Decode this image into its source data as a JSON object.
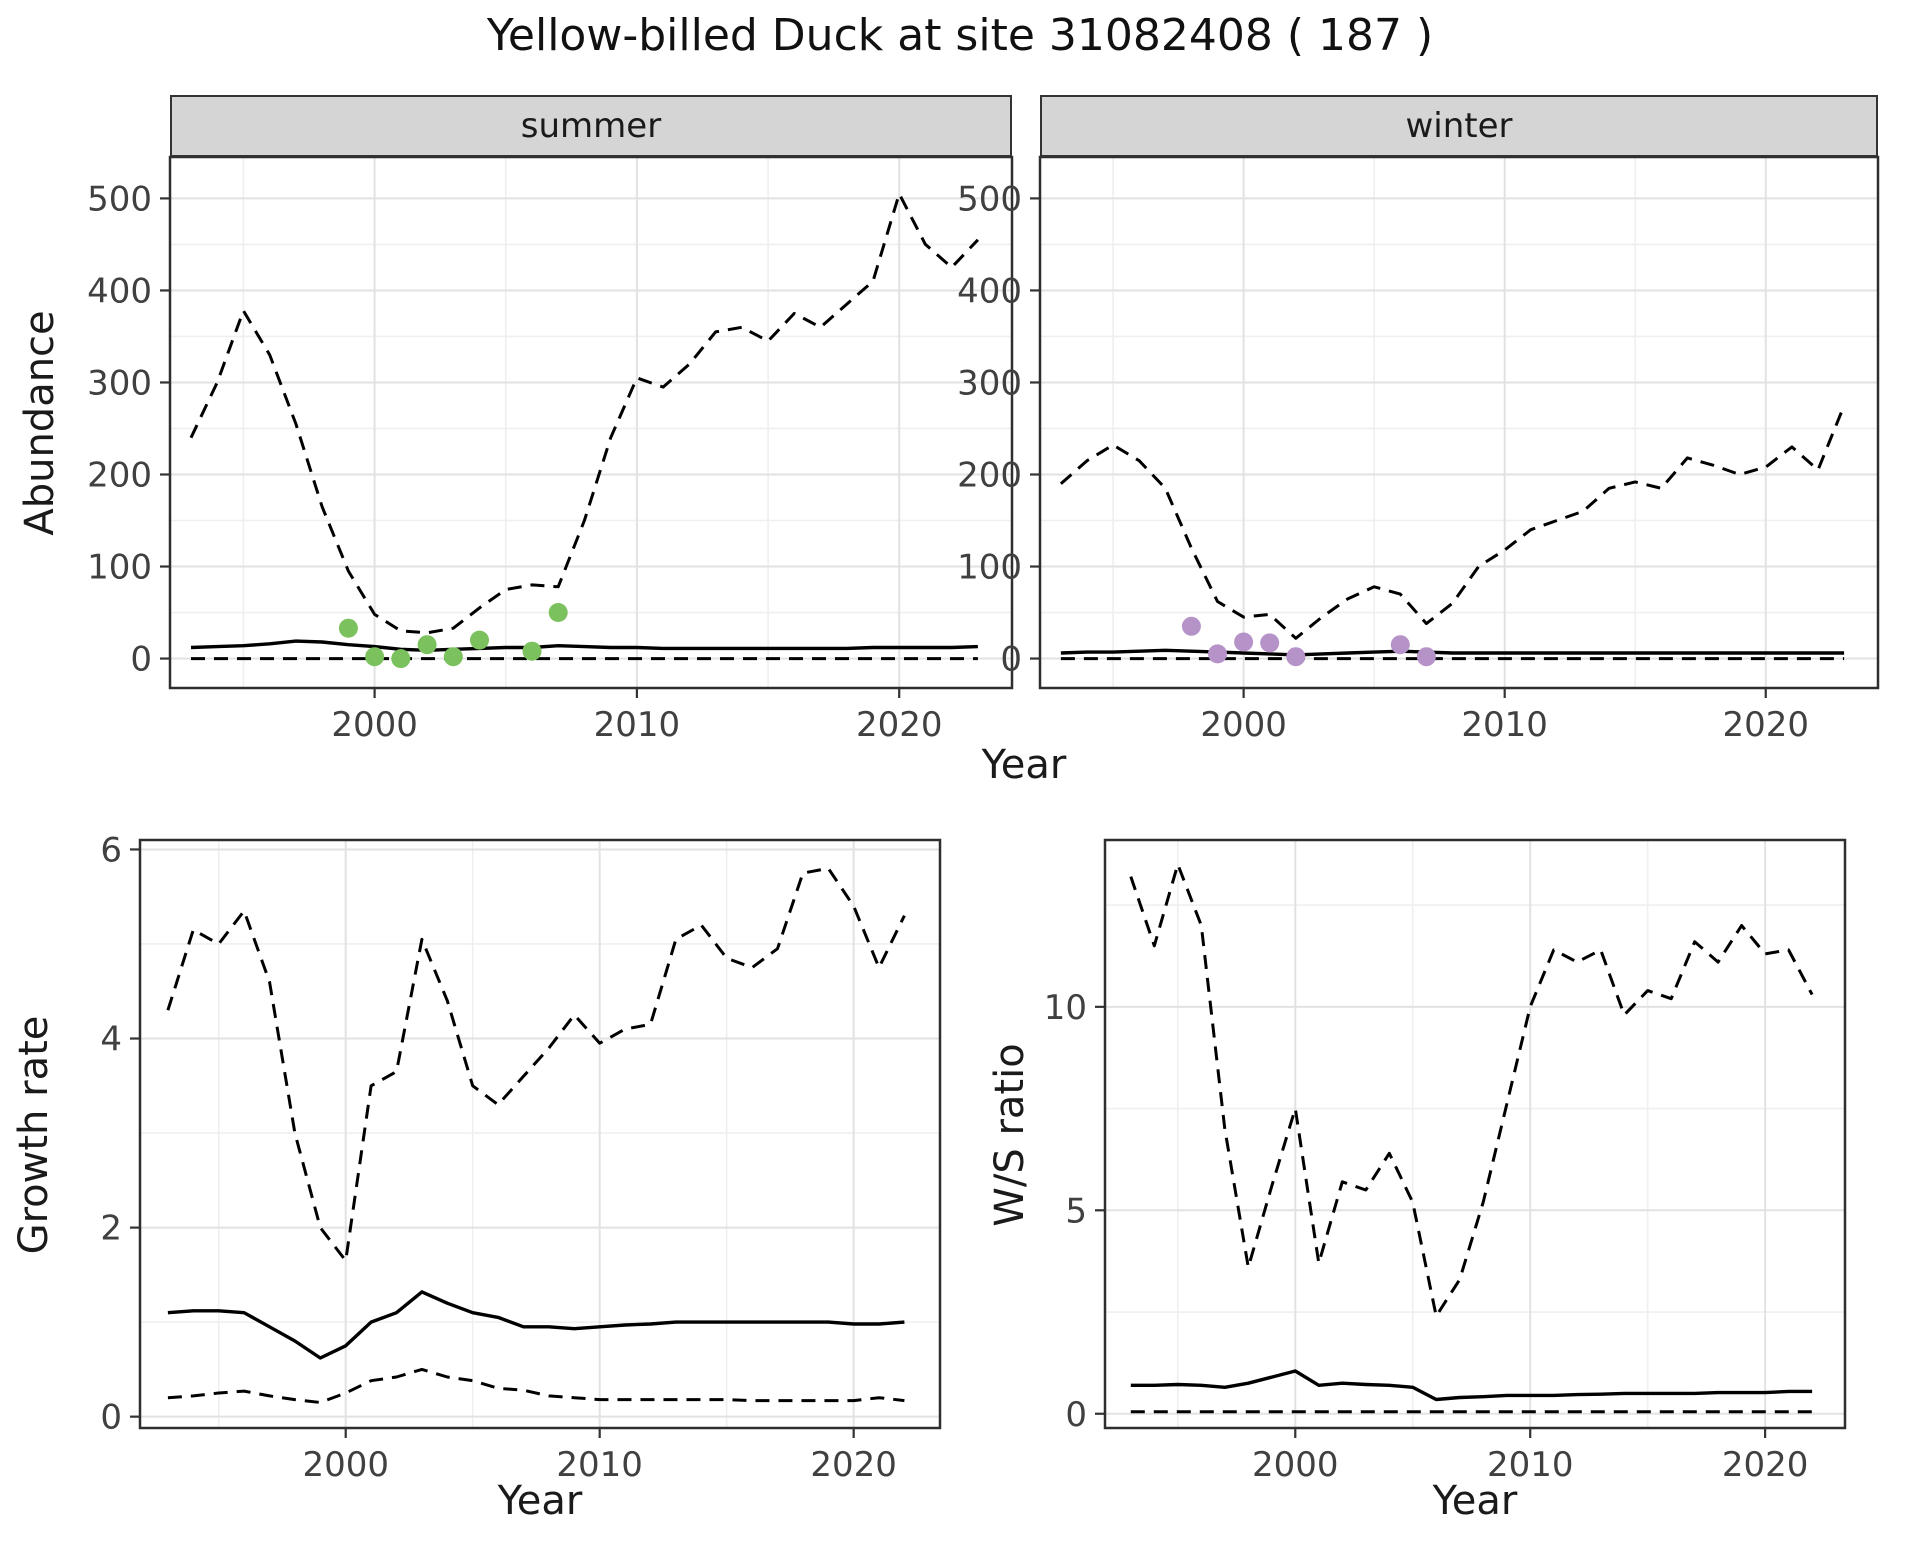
{
  "figure": {
    "title": "Yellow-billed Duck at site 31082408 ( 187 )",
    "colors": {
      "line": "#000000",
      "summer_points": "#7bc25e",
      "winter_points": "#b593c8",
      "strip_bg": "#d5d5d5",
      "grid_major": "#e2e2e2",
      "grid_minor": "#efefef",
      "panel_border": "#2e2e2e",
      "tick": "#333333",
      "tick_label": "#404040"
    }
  },
  "chart_data": [
    {
      "id": "abundance-summer",
      "type": "line",
      "facet_label": "summer",
      "xlabel": "Year",
      "ylabel": "Abundance",
      "xlim": [
        1992.2,
        2024.3
      ],
      "ylim": [
        -32,
        545
      ],
      "xticks": [
        2000,
        2010,
        2020
      ],
      "yticks": [
        0,
        100,
        200,
        300,
        400,
        500
      ],
      "x_minor": [
        1995,
        2005,
        2015
      ],
      "y_minor": [
        50,
        150,
        250,
        350,
        450
      ],
      "x": [
        1993,
        1994,
        1995,
        1996,
        1997,
        1998,
        1999,
        2000,
        2001,
        2002,
        2003,
        2004,
        2005,
        2006,
        2007,
        2008,
        2009,
        2010,
        2011,
        2012,
        2013,
        2014,
        2015,
        2016,
        2017,
        2018,
        2019,
        2020,
        2021,
        2022,
        2023
      ],
      "series": [
        {
          "name": "upper_ci",
          "style": "dashed",
          "values": [
            240,
            300,
            378,
            330,
            255,
            165,
            95,
            48,
            30,
            28,
            33,
            55,
            75,
            80,
            78,
            150,
            240,
            305,
            295,
            320,
            355,
            360,
            345,
            375,
            360,
            385,
            410,
            505,
            450,
            425,
            455
          ]
        },
        {
          "name": "median",
          "style": "solid",
          "values": [
            12,
            13,
            14,
            16,
            19,
            18,
            15,
            13,
            10,
            9,
            10,
            11,
            12,
            12,
            14,
            13,
            12,
            12,
            11,
            11,
            11,
            11,
            11,
            11,
            11,
            11,
            12,
            12,
            12,
            12,
            13
          ]
        },
        {
          "name": "lower_ci",
          "style": "dashed",
          "values": [
            0,
            0,
            0,
            0,
            0,
            0,
            0,
            0,
            0,
            0,
            0,
            0,
            0,
            0,
            0,
            0,
            0,
            0,
            0,
            0,
            0,
            0,
            0,
            0,
            0,
            0,
            0,
            0,
            0,
            0,
            0
          ]
        }
      ],
      "points": {
        "name": "observed-counts-summer",
        "color": "#7bc25e",
        "x": [
          1999,
          2000,
          2001,
          2002,
          2003,
          2004,
          2006,
          2007
        ],
        "y": [
          33,
          2,
          0,
          15,
          2,
          20,
          8,
          50
        ]
      }
    },
    {
      "id": "abundance-winter",
      "type": "line",
      "facet_label": "winter",
      "xlabel": "Year",
      "ylabel": "Abundance",
      "xlim": [
        1992.2,
        2024.3
      ],
      "ylim": [
        -32,
        545
      ],
      "xticks": [
        2000,
        2010,
        2020
      ],
      "yticks": [
        0,
        100,
        200,
        300,
        400,
        500
      ],
      "x_minor": [
        1995,
        2005,
        2015
      ],
      "y_minor": [
        50,
        150,
        250,
        350,
        450
      ],
      "x": [
        1993,
        1994,
        1995,
        1996,
        1997,
        1998,
        1999,
        2000,
        2001,
        2002,
        2003,
        2004,
        2005,
        2006,
        2007,
        2008,
        2009,
        2010,
        2011,
        2012,
        2013,
        2014,
        2015,
        2016,
        2017,
        2018,
        2019,
        2020,
        2021,
        2022,
        2023
      ],
      "series": [
        {
          "name": "upper_ci",
          "style": "dashed",
          "values": [
            190,
            215,
            232,
            215,
            185,
            120,
            62,
            45,
            48,
            22,
            45,
            65,
            78,
            70,
            38,
            60,
            100,
            118,
            140,
            150,
            160,
            185,
            192,
            185,
            218,
            210,
            200,
            208,
            230,
            205,
            275
          ]
        },
        {
          "name": "median",
          "style": "solid",
          "values": [
            6,
            7,
            7,
            8,
            9,
            8,
            7,
            6,
            5,
            4,
            5,
            6,
            7,
            8,
            7,
            6,
            6,
            6,
            6,
            6,
            6,
            6,
            6,
            6,
            6,
            6,
            6,
            6,
            6,
            6,
            6
          ]
        },
        {
          "name": "lower_ci",
          "style": "dashed",
          "values": [
            0,
            0,
            0,
            0,
            0,
            0,
            0,
            0,
            0,
            0,
            0,
            0,
            0,
            0,
            0,
            0,
            0,
            0,
            0,
            0,
            0,
            0,
            0,
            0,
            0,
            0,
            0,
            0,
            0,
            0,
            0
          ]
        }
      ],
      "points": {
        "name": "observed-counts-winter",
        "color": "#b593c8",
        "x": [
          1998,
          1999,
          2000,
          2001,
          2002,
          2006,
          2007
        ],
        "y": [
          35,
          5,
          18,
          17,
          2,
          15,
          2
        ]
      }
    },
    {
      "id": "growth-rate",
      "type": "line",
      "facet_label": "",
      "xlabel": "Year",
      "ylabel": "Growth rate",
      "xlim": [
        1991.9,
        2023.4
      ],
      "ylim": [
        -0.12,
        6.1
      ],
      "xticks": [
        2000,
        2010,
        2020
      ],
      "yticks": [
        0,
        2,
        4,
        6
      ],
      "x_minor": [
        1995,
        2005,
        2015
      ],
      "y_minor": [
        1,
        3,
        5
      ],
      "x": [
        1993,
        1994,
        1995,
        1996,
        1997,
        1998,
        1999,
        2000,
        2001,
        2002,
        2003,
        2004,
        2005,
        2006,
        2007,
        2008,
        2009,
        2010,
        2011,
        2012,
        2013,
        2014,
        2015,
        2016,
        2017,
        2018,
        2019,
        2020,
        2021,
        2022
      ],
      "series": [
        {
          "name": "upper_ci",
          "style": "dashed",
          "values": [
            4.3,
            5.15,
            5.0,
            5.35,
            4.6,
            3.0,
            2.0,
            1.65,
            3.5,
            3.65,
            5.05,
            4.4,
            3.5,
            3.3,
            3.6,
            3.9,
            4.25,
            3.95,
            4.1,
            4.15,
            5.05,
            5.2,
            4.85,
            4.75,
            4.95,
            5.75,
            5.8,
            5.4,
            4.75,
            5.3
          ]
        },
        {
          "name": "median",
          "style": "solid",
          "values": [
            1.1,
            1.12,
            1.12,
            1.1,
            0.95,
            0.8,
            0.62,
            0.75,
            1.0,
            1.1,
            1.32,
            1.2,
            1.1,
            1.05,
            0.95,
            0.95,
            0.93,
            0.95,
            0.97,
            0.98,
            1.0,
            1.0,
            1.0,
            1.0,
            1.0,
            1.0,
            1.0,
            0.98,
            0.98,
            1.0
          ]
        },
        {
          "name": "lower_ci",
          "style": "dashed",
          "values": [
            0.2,
            0.22,
            0.25,
            0.27,
            0.22,
            0.18,
            0.15,
            0.25,
            0.38,
            0.42,
            0.5,
            0.42,
            0.38,
            0.3,
            0.28,
            0.22,
            0.2,
            0.18,
            0.18,
            0.18,
            0.18,
            0.18,
            0.18,
            0.17,
            0.17,
            0.17,
            0.17,
            0.17,
            0.2,
            0.17
          ]
        }
      ]
    },
    {
      "id": "ws-ratio",
      "type": "line",
      "facet_label": "",
      "xlabel": "Year",
      "ylabel": "W/S ratio",
      "xlim": [
        1991.9,
        2023.4
      ],
      "ylim": [
        -0.35,
        14.1
      ],
      "xticks": [
        2000,
        2010,
        2020
      ],
      "yticks": [
        0,
        5,
        10
      ],
      "x_minor": [
        1995,
        2005,
        2015
      ],
      "y_minor": [
        2.5,
        7.5,
        12.5
      ],
      "x": [
        1993,
        1994,
        1995,
        1996,
        1997,
        1998,
        1999,
        2000,
        2001,
        2002,
        2003,
        2004,
        2005,
        2006,
        2007,
        2008,
        2009,
        2010,
        2011,
        2012,
        2013,
        2014,
        2015,
        2016,
        2017,
        2018,
        2019,
        2020,
        2021,
        2022
      ],
      "series": [
        {
          "name": "upper_ci",
          "style": "dashed",
          "values": [
            13.2,
            11.5,
            13.5,
            12.0,
            7.0,
            3.6,
            5.6,
            7.5,
            3.7,
            5.7,
            5.5,
            6.4,
            5.2,
            2.4,
            3.3,
            5.2,
            7.6,
            10.0,
            11.4,
            11.1,
            11.4,
            9.8,
            10.4,
            10.2,
            11.6,
            11.1,
            12.0,
            11.3,
            11.4,
            10.3
          ]
        },
        {
          "name": "median",
          "style": "solid",
          "values": [
            0.7,
            0.7,
            0.72,
            0.7,
            0.65,
            0.75,
            0.9,
            1.05,
            0.7,
            0.75,
            0.72,
            0.7,
            0.65,
            0.35,
            0.4,
            0.42,
            0.45,
            0.45,
            0.45,
            0.47,
            0.48,
            0.5,
            0.5,
            0.5,
            0.5,
            0.52,
            0.52,
            0.52,
            0.55,
            0.55
          ]
        },
        {
          "name": "lower_ci",
          "style": "dashed",
          "values": [
            0.05,
            0.05,
            0.05,
            0.05,
            0.05,
            0.05,
            0.05,
            0.05,
            0.05,
            0.05,
            0.05,
            0.05,
            0.05,
            0.05,
            0.05,
            0.05,
            0.05,
            0.05,
            0.05,
            0.05,
            0.05,
            0.05,
            0.05,
            0.05,
            0.05,
            0.05,
            0.05,
            0.05,
            0.05,
            0.05
          ]
        }
      ]
    }
  ]
}
